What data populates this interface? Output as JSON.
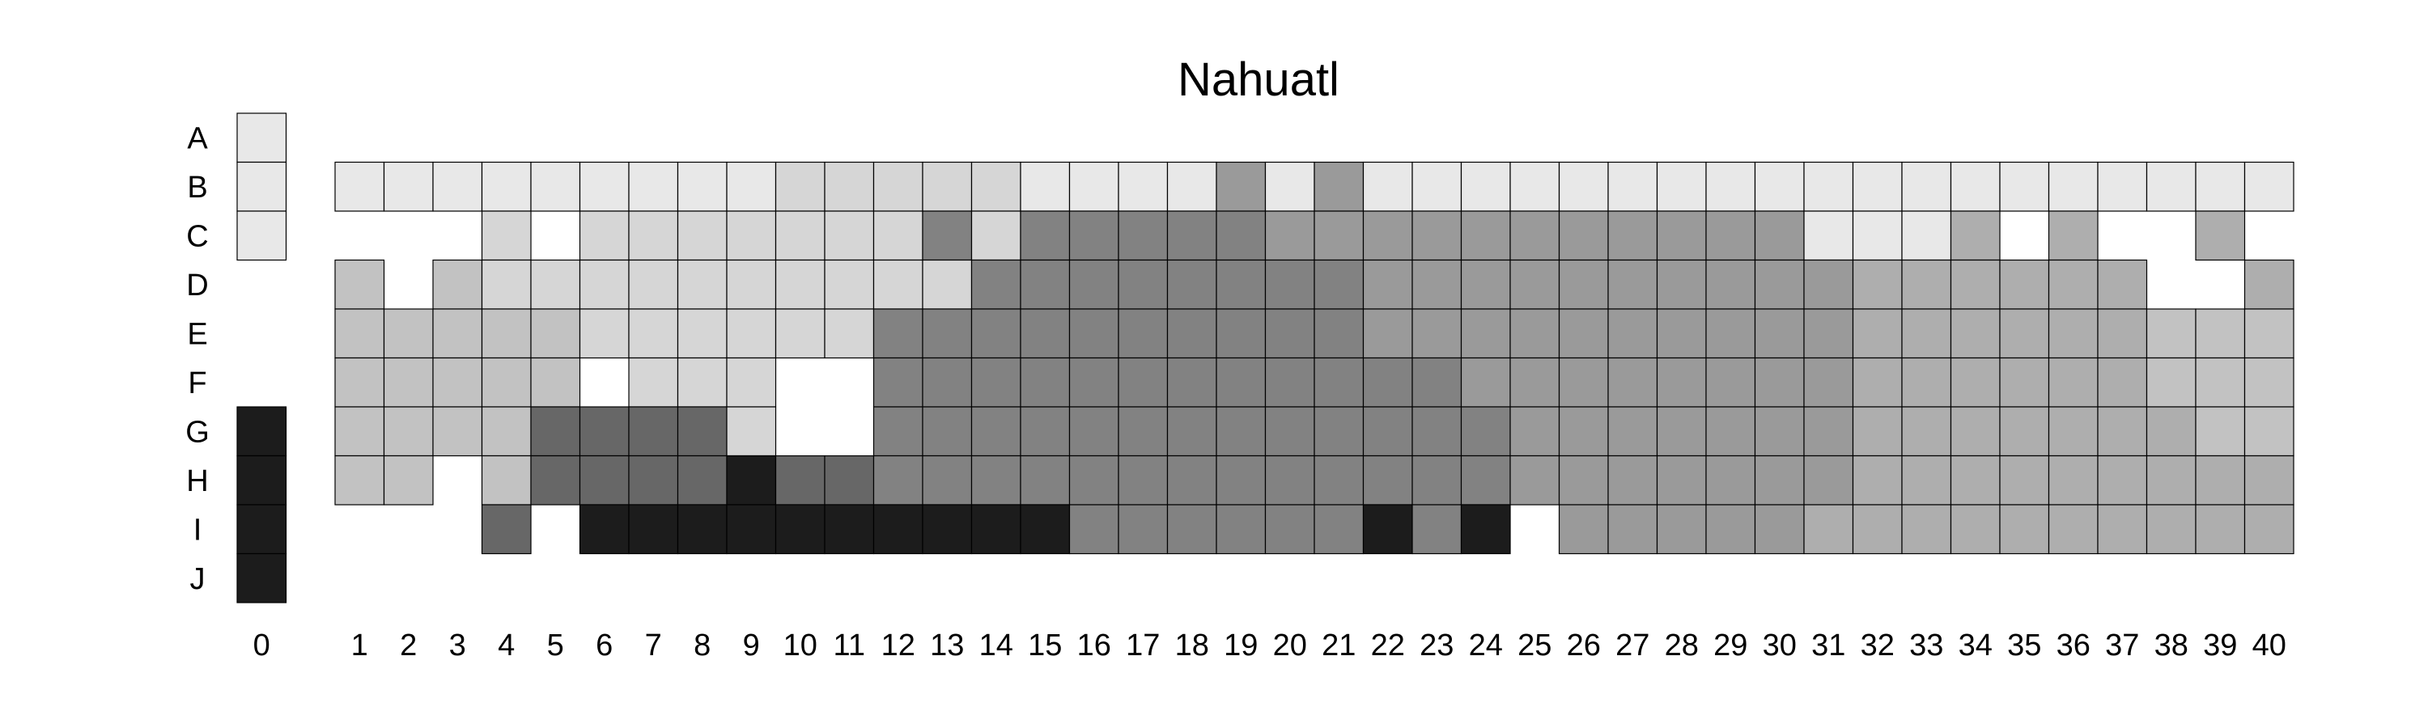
{
  "chart_data": {
    "type": "heatmap",
    "title": "Nahuatl",
    "row_labels": [
      "A",
      "B",
      "C",
      "D",
      "E",
      "F",
      "G",
      "H",
      "I",
      "J"
    ],
    "col_labels": [
      "0",
      "1",
      "2",
      "3",
      "4",
      "5",
      "6",
      "7",
      "8",
      "9",
      "10",
      "11",
      "12",
      "13",
      "14",
      "15",
      "16",
      "17",
      "18",
      "19",
      "20",
      "21",
      "22",
      "23",
      "24",
      "25",
      "26",
      "27",
      "28",
      "29",
      "30",
      "31",
      "32",
      "33",
      "34",
      "35",
      "36",
      "37",
      "38",
      "39",
      "40"
    ],
    "colors": {
      "lvl_a": "#e8e8e8",
      "lvl_b": "#d6d6d6",
      "lvl_c": "#c2c2c2",
      "lvl_d": "#aeaeae",
      "lvl_e": "#9a9a9a",
      "lvl_f": "#828282",
      "lvl_g": "#676767",
      "lvl_h": "#1c1c1c"
    },
    "column0": [
      "lvl_a",
      "lvl_a",
      "lvl_a",
      null,
      null,
      null,
      "lvl_h",
      "lvl_h",
      "lvl_h",
      "lvl_h"
    ],
    "grid_rows": [
      "B",
      "C",
      "D",
      "E",
      "F",
      "G",
      "H",
      "I"
    ],
    "grid": [
      [
        "lvl_a",
        "lvl_a",
        "lvl_a",
        "lvl_a",
        "lvl_a",
        "lvl_a",
        "lvl_a",
        "lvl_a",
        "lvl_a",
        "lvl_b",
        "lvl_b",
        "lvl_b",
        "lvl_b",
        "lvl_b",
        "lvl_a",
        "lvl_a",
        "lvl_a",
        "lvl_a",
        "lvl_e",
        "lvl_a",
        "lvl_e",
        "lvl_a",
        "lvl_a",
        "lvl_a",
        "lvl_a",
        "lvl_a",
        "lvl_a",
        "lvl_a",
        "lvl_a",
        "lvl_a",
        "lvl_a",
        "lvl_a",
        "lvl_a",
        "lvl_a",
        "lvl_a",
        "lvl_a",
        "lvl_a",
        "lvl_a",
        "lvl_a",
        "lvl_a"
      ],
      [
        null,
        null,
        null,
        "lvl_b",
        null,
        "lvl_b",
        "lvl_b",
        "lvl_b",
        "lvl_b",
        "lvl_b",
        "lvl_b",
        "lvl_b",
        "lvl_f",
        "lvl_b",
        "lvl_f",
        "lvl_f",
        "lvl_f",
        "lvl_f",
        "lvl_f",
        "lvl_e",
        "lvl_e",
        "lvl_e",
        "lvl_e",
        "lvl_e",
        "lvl_e",
        "lvl_e",
        "lvl_e",
        "lvl_e",
        "lvl_e",
        "lvl_e",
        "lvl_a",
        "lvl_a",
        "lvl_a",
        "lvl_d",
        null,
        "lvl_d",
        null,
        null,
        "lvl_d",
        null
      ],
      [
        "lvl_c",
        null,
        "lvl_c",
        "lvl_b",
        "lvl_b",
        "lvl_b",
        "lvl_b",
        "lvl_b",
        "lvl_b",
        "lvl_b",
        "lvl_b",
        "lvl_b",
        "lvl_b",
        "lvl_f",
        "lvl_f",
        "lvl_f",
        "lvl_f",
        "lvl_f",
        "lvl_f",
        "lvl_f",
        "lvl_f",
        "lvl_e",
        "lvl_e",
        "lvl_e",
        "lvl_e",
        "lvl_e",
        "lvl_e",
        "lvl_e",
        "lvl_e",
        "lvl_e",
        "lvl_e",
        "lvl_d",
        "lvl_d",
        "lvl_d",
        "lvl_d",
        "lvl_d",
        "lvl_d",
        null,
        null,
        "lvl_d"
      ],
      [
        "lvl_c",
        "lvl_c",
        "lvl_c",
        "lvl_c",
        "lvl_c",
        "lvl_b",
        "lvl_b",
        "lvl_b",
        "lvl_b",
        "lvl_b",
        "lvl_b",
        "lvl_f",
        "lvl_f",
        "lvl_f",
        "lvl_f",
        "lvl_f",
        "lvl_f",
        "lvl_f",
        "lvl_f",
        "lvl_f",
        "lvl_f",
        "lvl_e",
        "lvl_e",
        "lvl_e",
        "lvl_e",
        "lvl_e",
        "lvl_e",
        "lvl_e",
        "lvl_e",
        "lvl_e",
        "lvl_e",
        "lvl_d",
        "lvl_d",
        "lvl_d",
        "lvl_d",
        "lvl_d",
        "lvl_d",
        "lvl_c",
        "lvl_c",
        "lvl_c"
      ],
      [
        "lvl_c",
        "lvl_c",
        "lvl_c",
        "lvl_c",
        "lvl_c",
        null,
        "lvl_b",
        "lvl_b",
        "lvl_b",
        null,
        null,
        "lvl_f",
        "lvl_f",
        "lvl_f",
        "lvl_f",
        "lvl_f",
        "lvl_f",
        "lvl_f",
        "lvl_f",
        "lvl_f",
        "lvl_f",
        "lvl_f",
        "lvl_f",
        "lvl_e",
        "lvl_e",
        "lvl_e",
        "lvl_e",
        "lvl_e",
        "lvl_e",
        "lvl_e",
        "lvl_e",
        "lvl_d",
        "lvl_d",
        "lvl_d",
        "lvl_d",
        "lvl_d",
        "lvl_d",
        "lvl_c",
        "lvl_c",
        "lvl_c"
      ],
      [
        "lvl_c",
        "lvl_c",
        "lvl_c",
        "lvl_c",
        "lvl_g",
        "lvl_g",
        "lvl_g",
        "lvl_g",
        "lvl_b",
        null,
        null,
        "lvl_f",
        "lvl_f",
        "lvl_f",
        "lvl_f",
        "lvl_f",
        "lvl_f",
        "lvl_f",
        "lvl_f",
        "lvl_f",
        "lvl_f",
        "lvl_f",
        "lvl_f",
        "lvl_f",
        "lvl_e",
        "lvl_e",
        "lvl_e",
        "lvl_e",
        "lvl_e",
        "lvl_e",
        "lvl_e",
        "lvl_d",
        "lvl_d",
        "lvl_d",
        "lvl_d",
        "lvl_d",
        "lvl_d",
        "lvl_d",
        "lvl_c",
        "lvl_c"
      ],
      [
        "lvl_c",
        "lvl_c",
        null,
        "lvl_c",
        "lvl_g",
        "lvl_g",
        "lvl_g",
        "lvl_g",
        "lvl_h",
        "lvl_g",
        "lvl_g",
        "lvl_f",
        "lvl_f",
        "lvl_f",
        "lvl_f",
        "lvl_f",
        "lvl_f",
        "lvl_f",
        "lvl_f",
        "lvl_f",
        "lvl_f",
        "lvl_f",
        "lvl_f",
        "lvl_f",
        "lvl_e",
        "lvl_e",
        "lvl_e",
        "lvl_e",
        "lvl_e",
        "lvl_e",
        "lvl_e",
        "lvl_d",
        "lvl_d",
        "lvl_d",
        "lvl_d",
        "lvl_d",
        "lvl_d",
        "lvl_d",
        "lvl_d",
        "lvl_d"
      ],
      [
        null,
        null,
        null,
        "lvl_g",
        null,
        "lvl_h",
        "lvl_h",
        "lvl_h",
        "lvl_h",
        "lvl_h",
        "lvl_h",
        "lvl_h",
        "lvl_h",
        "lvl_h",
        "lvl_h",
        "lvl_f",
        "lvl_f",
        "lvl_f",
        "lvl_f",
        "lvl_f",
        "lvl_f",
        "lvl_h",
        "lvl_f",
        "lvl_h",
        null,
        "lvl_e",
        "lvl_e",
        "lvl_e",
        "lvl_e",
        "lvl_e",
        "lvl_d",
        "lvl_d",
        "lvl_d",
        "lvl_d",
        "lvl_d",
        "lvl_d",
        "lvl_d",
        "lvl_d",
        "lvl_d",
        "lvl_d"
      ]
    ]
  }
}
